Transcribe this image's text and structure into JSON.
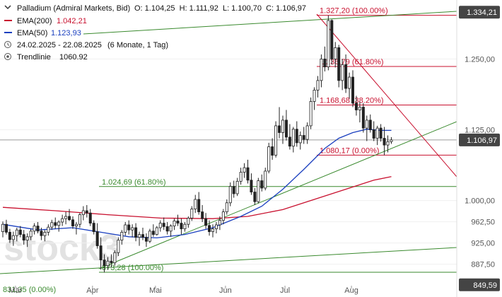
{
  "header": {
    "title": "Palladium (Admiral Markets, Bid)",
    "ohlc": "O: 1.104,25  H: 1.111,92  L: 1.100,70  C: 1.106,97",
    "ema200_label": "EMA(200)",
    "ema200_value": "1.042,21",
    "ema50_label": "EMA(50)",
    "ema50_value": "1.123,93",
    "period": "24.02.2025 - 22.08.2025",
    "period_detail": "(6 Monate, 1 Tag)",
    "trendline_label": "Trendlinie",
    "trendline_value": "1060.92"
  },
  "watermark": "stock3",
  "colors": {
    "candle": "#222222",
    "ema200": "#c8102e",
    "ema50": "#1a3fbf",
    "trend_green": "#3a8a2e",
    "fib_red": "#c8102e",
    "fib_green": "#3a8a2e",
    "axis_badge": "#444444"
  },
  "chart_data": {
    "type": "candlestick",
    "title": "Palladium (Admiral Markets, Bid)",
    "x_labels": [
      "Mär",
      "Apr",
      "Mai",
      "Jun",
      "Jul",
      "Aug"
    ],
    "y_ticks": [
      "1.250,00",
      "1.125,00",
      "1.000,00",
      "962,50",
      "925,00",
      "887,50"
    ],
    "ylim": [
      849.59,
      1334.21
    ],
    "axis_badges": {
      "top": "1.334,21",
      "last": "1.106,97",
      "bottom": "849,59"
    },
    "last_price": 1106.97,
    "fib_levels": [
      {
        "label": "1.327,20 (100.00%)",
        "value": 1327.2,
        "color": "red"
      },
      {
        "label": "1.236,79 (61.80%)",
        "value": 1236.79,
        "color": "red"
      },
      {
        "label": "1.168,68 (38.20%)",
        "value": 1168.68,
        "color": "red"
      },
      {
        "label": "1.080,17 (0.00%)",
        "value": 1080.17,
        "color": "red"
      },
      {
        "label": "1.024,69 (61.80%)",
        "value": 1024.69,
        "color": "green"
      },
      {
        "label": "873,28 (100.00%)",
        "value": 873.28,
        "color": "green"
      },
      {
        "label": "831,35 (0.00%)",
        "value": 831.35,
        "color": "green"
      }
    ],
    "ohlc": [
      [
        945,
        963,
        935,
        958
      ],
      [
        958,
        966,
        940,
        944
      ],
      [
        944,
        950,
        925,
        931
      ],
      [
        931,
        945,
        920,
        938
      ],
      [
        938,
        952,
        928,
        948
      ],
      [
        948,
        955,
        935,
        940
      ],
      [
        940,
        948,
        922,
        930
      ],
      [
        930,
        942,
        918,
        936
      ],
      [
        936,
        950,
        930,
        946
      ],
      [
        946,
        960,
        940,
        955
      ],
      [
        955,
        962,
        942,
        946
      ],
      [
        946,
        952,
        930,
        938
      ],
      [
        938,
        948,
        928,
        944
      ],
      [
        944,
        958,
        938,
        953
      ],
      [
        953,
        966,
        948,
        961
      ],
      [
        961,
        970,
        950,
        956
      ],
      [
        956,
        965,
        945,
        962
      ],
      [
        962,
        975,
        955,
        968
      ],
      [
        968,
        980,
        958,
        972
      ],
      [
        972,
        985,
        964,
        966
      ],
      [
        966,
        972,
        950,
        955
      ],
      [
        955,
        962,
        940,
        958
      ],
      [
        958,
        978,
        952,
        975
      ],
      [
        975,
        990,
        965,
        982
      ],
      [
        982,
        992,
        970,
        978
      ],
      [
        978,
        985,
        955,
        960
      ],
      [
        960,
        965,
        940,
        945
      ],
      [
        945,
        960,
        915,
        920
      ],
      [
        920,
        935,
        878,
        895
      ],
      [
        895,
        905,
        873,
        885
      ],
      [
        885,
        900,
        878,
        893
      ],
      [
        893,
        905,
        882,
        890
      ],
      [
        890,
        912,
        885,
        908
      ],
      [
        908,
        935,
        902,
        930
      ],
      [
        930,
        948,
        922,
        944
      ],
      [
        944,
        962,
        938,
        957
      ],
      [
        957,
        965,
        940,
        948
      ],
      [
        948,
        958,
        935,
        952
      ],
      [
        952,
        960,
        928,
        935
      ],
      [
        935,
        945,
        920,
        940
      ],
      [
        940,
        952,
        930,
        935
      ],
      [
        935,
        942,
        918,
        928
      ],
      [
        928,
        950,
        925,
        946
      ],
      [
        946,
        958,
        936,
        940
      ],
      [
        940,
        955,
        938,
        952
      ],
      [
        952,
        965,
        945,
        960
      ],
      [
        960,
        970,
        948,
        954
      ],
      [
        954,
        962,
        940,
        946
      ],
      [
        946,
        958,
        936,
        955
      ],
      [
        955,
        968,
        948,
        964
      ],
      [
        964,
        975,
        955,
        960
      ],
      [
        960,
        968,
        940,
        950
      ],
      [
        950,
        962,
        945,
        958
      ],
      [
        958,
        972,
        952,
        969
      ],
      [
        969,
        990,
        964,
        985
      ],
      [
        985,
        1010,
        978,
        1002
      ],
      [
        1002,
        1015,
        975,
        980
      ],
      [
        980,
        992,
        962,
        968
      ],
      [
        968,
        978,
        950,
        956
      ],
      [
        956,
        965,
        938,
        945
      ],
      [
        945,
        958,
        935,
        950
      ],
      [
        950,
        962,
        942,
        957
      ],
      [
        957,
        972,
        948,
        965
      ],
      [
        965,
        985,
        958,
        980
      ],
      [
        980,
        1002,
        975,
        996
      ],
      [
        996,
        1032,
        990,
        1025
      ],
      [
        1025,
        1035,
        1005,
        1012
      ],
      [
        1012,
        1040,
        1008,
        1034
      ],
      [
        1034,
        1058,
        1028,
        1050
      ],
      [
        1050,
        1066,
        1040,
        1058
      ],
      [
        1058,
        1072,
        1030,
        1036
      ],
      [
        1036,
        1048,
        1010,
        1015
      ],
      [
        1015,
        1022,
        992,
        998
      ],
      [
        998,
        1040,
        995,
        1035
      ],
      [
        1035,
        1046,
        1016,
        1022
      ],
      [
        1022,
        1058,
        1018,
        1052
      ],
      [
        1052,
        1102,
        1048,
        1095
      ],
      [
        1095,
        1110,
        1072,
        1080
      ],
      [
        1080,
        1140,
        1076,
        1132
      ],
      [
        1132,
        1165,
        1110,
        1120
      ],
      [
        1120,
        1150,
        1100,
        1142
      ],
      [
        1142,
        1160,
        1106,
        1112
      ],
      [
        1112,
        1135,
        1090,
        1096
      ],
      [
        1096,
        1130,
        1085,
        1126
      ],
      [
        1126,
        1140,
        1095,
        1102
      ],
      [
        1102,
        1122,
        1090,
        1115
      ],
      [
        1115,
        1130,
        1100,
        1108
      ],
      [
        1108,
        1138,
        1100,
        1132
      ],
      [
        1132,
        1182,
        1126,
        1175
      ],
      [
        1175,
        1200,
        1160,
        1195
      ],
      [
        1195,
        1220,
        1182,
        1212
      ],
      [
        1212,
        1258,
        1200,
        1250
      ],
      [
        1250,
        1272,
        1228,
        1236
      ],
      [
        1236,
        1327,
        1230,
        1318
      ],
      [
        1318,
        1320,
        1240,
        1250
      ],
      [
        1250,
        1280,
        1235,
        1270
      ],
      [
        1270,
        1275,
        1200,
        1212
      ],
      [
        1212,
        1250,
        1195,
        1240
      ],
      [
        1240,
        1258,
        1190,
        1198
      ],
      [
        1198,
        1226,
        1180,
        1218
      ],
      [
        1218,
        1230,
        1165,
        1172
      ],
      [
        1172,
        1185,
        1150,
        1160
      ],
      [
        1160,
        1175,
        1138,
        1165
      ],
      [
        1165,
        1172,
        1120,
        1128
      ],
      [
        1128,
        1150,
        1105,
        1142
      ],
      [
        1142,
        1152,
        1120,
        1125
      ],
      [
        1125,
        1140,
        1105,
        1110
      ],
      [
        1110,
        1132,
        1098,
        1128
      ],
      [
        1128,
        1135,
        1104,
        1110
      ],
      [
        1110,
        1130,
        1080,
        1098
      ],
      [
        1098,
        1115,
        1085,
        1104
      ],
      [
        1104,
        1112,
        1100,
        1107
      ]
    ],
    "ema50": [
      [
        0,
        958
      ],
      [
        10,
        948
      ],
      [
        20,
        952
      ],
      [
        28,
        944
      ],
      [
        36,
        936
      ],
      [
        44,
        934
      ],
      [
        52,
        940
      ],
      [
        60,
        952
      ],
      [
        68,
        972
      ],
      [
        74,
        990
      ],
      [
        80,
        1020
      ],
      [
        86,
        1055
      ],
      [
        92,
        1092
      ],
      [
        96,
        1110
      ],
      [
        100,
        1120
      ],
      [
        104,
        1126
      ],
      [
        108,
        1124
      ],
      [
        111,
        1123.93
      ]
    ],
    "ema200": [
      [
        0,
        988
      ],
      [
        15,
        982
      ],
      [
        30,
        975
      ],
      [
        45,
        969
      ],
      [
        60,
        968
      ],
      [
        70,
        972
      ],
      [
        80,
        984
      ],
      [
        90,
        1004
      ],
      [
        100,
        1024
      ],
      [
        106,
        1036
      ],
      [
        111,
        1042.21
      ]
    ]
  }
}
